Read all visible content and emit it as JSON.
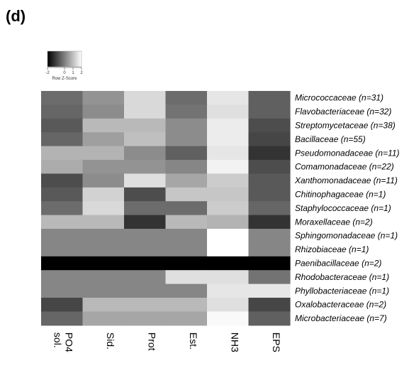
{
  "panel_label": "(d)",
  "chart_data": {
    "type": "heatmap",
    "title": "",
    "color_key": {
      "title": "Row Z-Score",
      "ticks": [
        "-2",
        "0",
        "1",
        "2"
      ],
      "range": [
        -2,
        2
      ],
      "low_color": "#000000",
      "high_color": "#ffffff"
    },
    "columns": [
      "PO4 sol.",
      "Sid.",
      "Prot",
      "Est.",
      "NH3",
      "EPS"
    ],
    "rows": [
      "Micrococcaceae (n=31)",
      "Flavobacteriaceae (n=32)",
      "Streptomycetaceae (n=38)",
      "Bacillaceae (n=55)",
      "Pseudomonadaceae (n=11)",
      "Comamonadaceae (n=22)",
      "Xanthomonadaceae (n=11)",
      "Chitinophagaceae (n=1)",
      "Staphylococcaceae (n=1)",
      "Moraxellaceae (n=2)",
      "Sphingomonadaceae (n=1)",
      "Rhizobiaceae (n=1)",
      "Paenibacillaceae (n=2)",
      "Rhodobacteraceae (n=1)",
      "Phyllobacteriaceae (n=1)",
      "Oxalobacteraceae (n=2)",
      "Microbacteriaceae (n=7)"
    ],
    "values": [
      [
        -0.3,
        0.3,
        1.4,
        -0.3,
        1.6,
        -0.5
      ],
      [
        -0.4,
        0.2,
        1.4,
        -0.2,
        1.5,
        -0.5
      ],
      [
        -0.6,
        0.9,
        0.9,
        0.2,
        1.7,
        -0.8
      ],
      [
        -0.4,
        0.5,
        1.0,
        0.2,
        1.7,
        -0.9
      ],
      [
        0.8,
        0.8,
        0.2,
        -0.5,
        1.6,
        -1.2
      ],
      [
        0.7,
        0.3,
        0.3,
        0.1,
        1.8,
        -0.8
      ],
      [
        -0.8,
        0.2,
        1.5,
        0.6,
        1.2,
        -0.6
      ],
      [
        -0.6,
        1.3,
        -0.8,
        1.1,
        1.1,
        -0.6
      ],
      [
        -0.3,
        1.4,
        -0.3,
        -0.3,
        1.2,
        -0.4
      ],
      [
        0.9,
        0.9,
        -1.2,
        0.9,
        0.8,
        -1.2
      ],
      [
        0.1,
        0.1,
        0.1,
        0.1,
        2.0,
        0.1
      ],
      [
        0.1,
        0.1,
        0.1,
        0.1,
        2.0,
        0.1
      ],
      [
        -2.0,
        -2.0,
        -2.0,
        -2.0,
        -2.0,
        -2.0
      ],
      [
        0.1,
        0.1,
        0.1,
        1.5,
        1.5,
        -0.2
      ],
      [
        0.1,
        0.1,
        0.1,
        0.1,
        1.6,
        1.6
      ],
      [
        -0.9,
        0.9,
        0.9,
        0.9,
        1.5,
        -0.9
      ],
      [
        -0.4,
        0.6,
        0.6,
        0.6,
        1.9,
        -0.5
      ]
    ]
  }
}
